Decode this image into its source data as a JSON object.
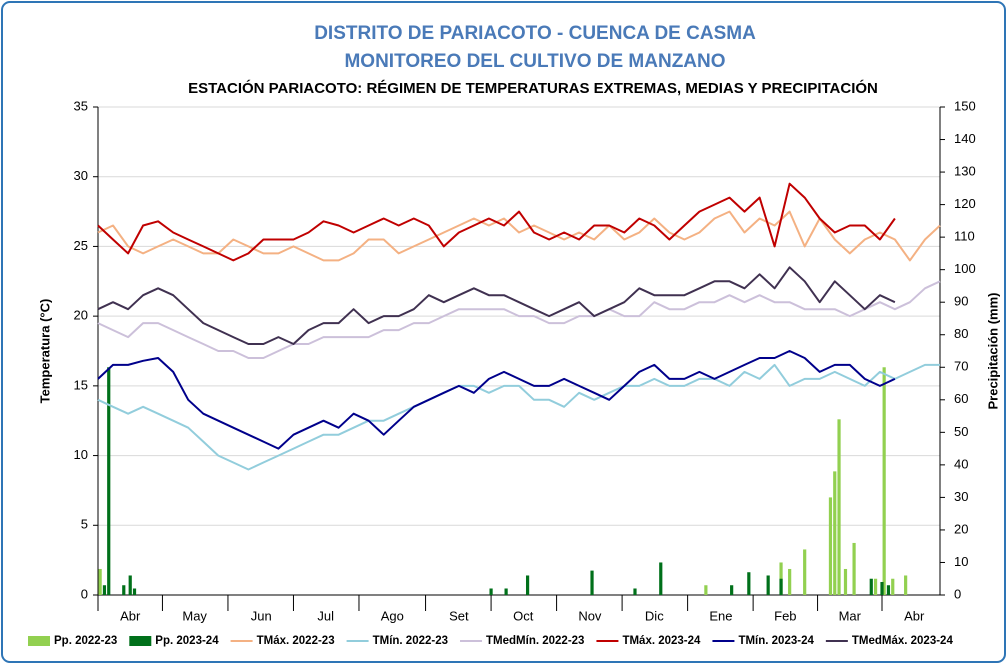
{
  "chart_data": {
    "type": "line",
    "title": "DISTRITO DE PARIACOTO - CUENCA DE CASMA",
    "subtitle": "MONITOREO DEL CULTIVO DE MANZANO",
    "heading": "ESTACIÓN PARIACOTO: RÉGIMEN DE TEMPERATURAS EXTREMAS, MEDIAS Y PRECIPITACIÓN",
    "y_label": "Temperatura (°C)",
    "y2_label": "Precipitación (mm)",
    "xlim": [
      0,
      392
    ],
    "xticks": [
      {
        "value": 15,
        "label": "Abr"
      },
      {
        "value": 45,
        "label": "May"
      },
      {
        "value": 76,
        "label": "Jun"
      },
      {
        "value": 106,
        "label": "Jul"
      },
      {
        "value": 137,
        "label": "Ago"
      },
      {
        "value": 168,
        "label": "Set"
      },
      {
        "value": 198,
        "label": "Oct"
      },
      {
        "value": 229,
        "label": "Nov"
      },
      {
        "value": 259,
        "label": "Dic"
      },
      {
        "value": 290,
        "label": "Ene"
      },
      {
        "value": 320,
        "label": "Feb"
      },
      {
        "value": 350,
        "label": "Mar"
      },
      {
        "value": 380,
        "label": "Abr"
      }
    ],
    "ylim": [
      0,
      35
    ],
    "yticks": [
      0,
      5,
      10,
      15,
      20,
      25,
      30,
      35
    ],
    "y2lim": [
      0,
      150
    ],
    "y2ticks": [
      0,
      10,
      20,
      30,
      40,
      50,
      60,
      70,
      80,
      90,
      100,
      110,
      120,
      130,
      140,
      150
    ],
    "grid": true,
    "legend": "bottom",
    "x": [
      0,
      7,
      14,
      21,
      28,
      35,
      42,
      49,
      56,
      63,
      70,
      77,
      84,
      91,
      98,
      105,
      112,
      119,
      126,
      133,
      140,
      147,
      154,
      161,
      168,
      175,
      182,
      189,
      196,
      203,
      210,
      217,
      224,
      231,
      238,
      245,
      252,
      259,
      266,
      273,
      280,
      287,
      294,
      301,
      308,
      315,
      322,
      329,
      336,
      343,
      350,
      357,
      364,
      371,
      378,
      385,
      392
    ],
    "series": [
      {
        "name": "Pp. 2022-23",
        "type": "bar",
        "axis": "y2",
        "color": "#92d050",
        "x": [
          1,
          283,
          318,
          322,
          329,
          341,
          343,
          345,
          348,
          352,
          362,
          366,
          370,
          376
        ],
        "values": [
          8,
          3,
          10,
          8,
          14,
          30,
          38,
          54,
          8,
          16,
          5,
          70,
          5,
          6
        ]
      },
      {
        "name": "Pp. 2023-24",
        "type": "bar",
        "axis": "y2",
        "color": "#00701a",
        "x": [
          3,
          5,
          12,
          15,
          17,
          183,
          190,
          200,
          230,
          250,
          262,
          295,
          303,
          312,
          318,
          360,
          365,
          368
        ],
        "values": [
          3,
          70,
          3,
          6,
          2,
          2,
          2,
          6,
          7.5,
          2,
          10,
          3,
          7,
          6,
          5,
          5,
          4,
          3
        ]
      },
      {
        "name": "TMáx. 2022-23",
        "color": "#f4b183",
        "values": [
          26,
          26.5,
          25,
          24.5,
          25,
          25.5,
          25,
          24.5,
          24.5,
          25.5,
          25,
          24.5,
          24.5,
          25,
          24.5,
          24,
          24,
          24.5,
          25.5,
          25.5,
          24.5,
          25,
          25.5,
          26,
          26.5,
          27,
          26.5,
          27,
          26,
          26.5,
          26,
          25.5,
          26,
          25.5,
          26.5,
          25.5,
          26,
          27,
          26,
          25.5,
          26,
          27,
          27.5,
          26,
          27,
          26.5,
          27.5,
          25,
          27,
          25.5,
          24.5,
          25.5,
          26,
          25.5,
          24,
          25.5,
          26.5
        ]
      },
      {
        "name": "TMín. 2022-23",
        "color": "#92cddc",
        "values": [
          14,
          13.5,
          13,
          13.5,
          13,
          12.5,
          12,
          11,
          10,
          9.5,
          9,
          9.5,
          10,
          10.5,
          11,
          11.5,
          11.5,
          12,
          12.5,
          12.5,
          13,
          13.5,
          14,
          14.5,
          15,
          15,
          14.5,
          15,
          15,
          14,
          14,
          13.5,
          14.5,
          14,
          14.5,
          15,
          15,
          15.5,
          15,
          15,
          15.5,
          15.5,
          15,
          16,
          15.5,
          16.5,
          15,
          15.5,
          15.5,
          16,
          15.5,
          15,
          16,
          15.5,
          16,
          16.5,
          16.5
        ]
      },
      {
        "name": "TMedMín. 2022-23",
        "color": "#ccc0da",
        "values": [
          19.5,
          19,
          18.5,
          19.5,
          19.5,
          19,
          18.5,
          18,
          17.5,
          17.5,
          17,
          17,
          17.5,
          18,
          18,
          18.5,
          18.5,
          18.5,
          18.5,
          19,
          19,
          19.5,
          19.5,
          20,
          20.5,
          20.5,
          20.5,
          20.5,
          20,
          20,
          19.5,
          19.5,
          20,
          20,
          20.5,
          20,
          20,
          21,
          20.5,
          20.5,
          21,
          21,
          21.5,
          21,
          21.5,
          21,
          21,
          20.5,
          20.5,
          20.5,
          20,
          20.5,
          21,
          20.5,
          21,
          22,
          22.5
        ]
      },
      {
        "name": "TMáx. 2023-24",
        "color": "#c00000",
        "values": [
          26.5,
          25.5,
          24.5,
          26.5,
          26.8,
          26,
          25.5,
          25,
          24.5,
          24,
          24.5,
          25.5,
          25.5,
          25.5,
          26,
          26.8,
          26.5,
          26,
          26.5,
          27,
          26.5,
          27,
          26.5,
          25,
          26,
          26.5,
          27,
          26.5,
          27.5,
          26,
          25.5,
          26,
          25.5,
          26.5,
          26.5,
          26,
          27,
          26.5,
          25.5,
          26.5,
          27.5,
          28,
          28.5,
          27.5,
          28.5,
          25,
          29.5,
          28.5,
          27,
          26,
          26.5,
          26.5,
          25.5,
          27,
          null,
          null,
          null
        ]
      },
      {
        "name": "TMín. 2023-24",
        "color": "#00008b",
        "values": [
          15.5,
          16.5,
          16.5,
          16.8,
          17,
          16,
          14,
          13,
          12.5,
          12,
          11.5,
          11,
          10.5,
          11.5,
          12,
          12.5,
          12,
          13,
          12.5,
          11.5,
          12.5,
          13.5,
          14,
          14.5,
          15,
          14.5,
          15.5,
          16,
          15.5,
          15,
          15,
          15.5,
          15,
          14.5,
          14,
          15,
          16,
          16.5,
          15.5,
          15.5,
          16,
          15.5,
          16,
          16.5,
          17,
          17,
          17.5,
          17,
          16,
          16.5,
          16.5,
          15.5,
          15,
          15.5,
          null,
          null,
          null
        ]
      },
      {
        "name": "TMedMáx. 2023-24",
        "color": "#403151",
        "values": [
          20.5,
          21,
          20.5,
          21.5,
          22,
          21.5,
          20.5,
          19.5,
          19,
          18.5,
          18,
          18,
          18.5,
          18,
          19,
          19.5,
          19.5,
          20.5,
          19.5,
          20,
          20,
          20.5,
          21.5,
          21,
          21.5,
          22,
          21.5,
          21.5,
          21,
          20.5,
          20,
          20.5,
          21,
          20,
          20.5,
          21,
          22,
          21.5,
          21.5,
          21.5,
          22,
          22.5,
          22.5,
          22,
          23,
          22,
          23.5,
          22.5,
          21,
          22.5,
          21.5,
          20.5,
          21.5,
          21,
          null,
          null,
          null
        ]
      }
    ]
  }
}
